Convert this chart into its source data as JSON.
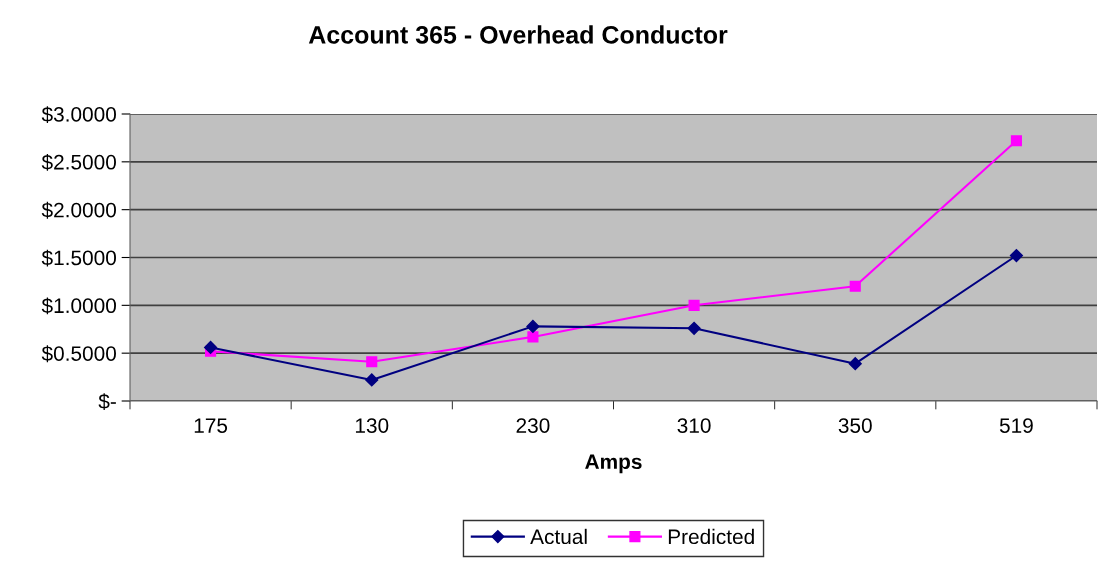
{
  "chart_data": {
    "type": "line",
    "title": "Account 365 - Overhead Conductor",
    "xlabel": "Amps",
    "categories": [
      "175",
      "130",
      "230",
      "310",
      "350",
      "519"
    ],
    "series": [
      {
        "name": "Actual",
        "color": "#000080",
        "marker": "diamond",
        "values": [
          0.56,
          0.22,
          0.78,
          0.76,
          0.39,
          1.52
        ]
      },
      {
        "name": "Predicted",
        "color": "#ff00ff",
        "marker": "square",
        "values": [
          0.52,
          0.41,
          0.67,
          1.0,
          1.2,
          2.72
        ]
      }
    ],
    "ylim": [
      0,
      3
    ],
    "yticks": [
      {
        "value": 0,
        "label": "$-"
      },
      {
        "value": 0.5,
        "label": "$0.5000"
      },
      {
        "value": 1,
        "label": "$1.0000"
      },
      {
        "value": 1.5,
        "label": "$1.5000"
      },
      {
        "value": 2,
        "label": "$2.0000"
      },
      {
        "value": 2.5,
        "label": "$2.5000"
      },
      {
        "value": 3,
        "label": "$3.0000"
      }
    ],
    "grid": "y",
    "legend": "bottom",
    "line_style": "solid"
  }
}
